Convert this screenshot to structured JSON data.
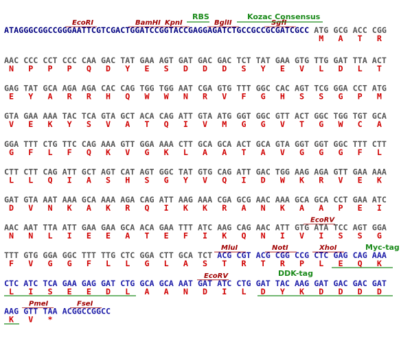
{
  "header": {
    "tags": [
      "RBS",
      "Kozac Consensus"
    ],
    "enzymes": [
      "EcoRI",
      "BamHI",
      "KpnI",
      "BglII",
      "SgfI"
    ],
    "leader": "ATAGGGCGGCCGGGAATTCGTCGACTGGATCCGGTACCGAGGAGATCTGCCGCCGCGATCGCC",
    "codons": [
      "ATG",
      "GCG",
      "ACC",
      "CGG"
    ],
    "amino_acids": [
      "M",
      "A",
      "T",
      "R"
    ]
  },
  "rows": [
    {
      "codons": [
        "AAC",
        "CCC",
        "CCT",
        "CCC",
        "CAA",
        "GAC",
        "TAT",
        "GAA",
        "AGT",
        "GAT",
        "GAC",
        "GAC",
        "TCT",
        "TAT",
        "GAA",
        "GTG",
        "TTG",
        "GAT",
        "TTA",
        "ACT"
      ],
      "amino_acids": [
        "N",
        "P",
        "P",
        "P",
        "Q",
        "D",
        "Y",
        "E",
        "S",
        "D",
        "D",
        "D",
        "S",
        "Y",
        "E",
        "V",
        "L",
        "D",
        "L",
        "T"
      ]
    },
    {
      "codons": [
        "GAG",
        "TAT",
        "GCA",
        "AGA",
        "AGA",
        "CAC",
        "CAG",
        "TGG",
        "TGG",
        "AAT",
        "CGA",
        "GTG",
        "TTT",
        "GGC",
        "CAC",
        "AGT",
        "TCG",
        "GGA",
        "CCT",
        "ATG"
      ],
      "amino_acids": [
        "E",
        "Y",
        "A",
        "R",
        "R",
        "H",
        "Q",
        "W",
        "W",
        "N",
        "R",
        "V",
        "F",
        "G",
        "H",
        "S",
        "S",
        "G",
        "P",
        "M"
      ]
    },
    {
      "codons": [
        "GTA",
        "GAA",
        "AAA",
        "TAC",
        "TCA",
        "GTA",
        "GCT",
        "ACA",
        "CAG",
        "ATT",
        "GTA",
        "ATG",
        "GGT",
        "GGC",
        "GTT",
        "ACT",
        "GGC",
        "TGG",
        "TGT",
        "GCA"
      ],
      "amino_acids": [
        "V",
        "E",
        "K",
        "Y",
        "S",
        "V",
        "A",
        "T",
        "Q",
        "I",
        "V",
        "M",
        "G",
        "G",
        "V",
        "T",
        "G",
        "W",
        "C",
        "A"
      ]
    },
    {
      "codons": [
        "GGA",
        "TTT",
        "CTG",
        "TTC",
        "CAG",
        "AAA",
        "GTT",
        "GGA",
        "AAA",
        "CTT",
        "GCA",
        "GCA",
        "ACT",
        "GCA",
        "GTA",
        "GGT",
        "GGT",
        "GGC",
        "TTT",
        "CTT"
      ],
      "amino_acids": [
        "G",
        "F",
        "L",
        "F",
        "Q",
        "K",
        "V",
        "G",
        "K",
        "L",
        "A",
        "A",
        "T",
        "A",
        "V",
        "G",
        "G",
        "G",
        "F",
        "L"
      ]
    },
    {
      "codons": [
        "CTT",
        "CTT",
        "CAG",
        "ATT",
        "GCT",
        "AGT",
        "CAT",
        "AGT",
        "GGC",
        "TAT",
        "GTG",
        "CAG",
        "ATT",
        "GAC",
        "TGG",
        "AAG",
        "AGA",
        "GTT",
        "GAA",
        "AAA"
      ],
      "amino_acids": [
        "L",
        "L",
        "Q",
        "I",
        "A",
        "S",
        "H",
        "S",
        "G",
        "Y",
        "V",
        "Q",
        "I",
        "D",
        "W",
        "K",
        "R",
        "V",
        "E",
        "K"
      ]
    },
    {
      "codons": [
        "GAT",
        "GTA",
        "AAT",
        "AAA",
        "GCA",
        "AAA",
        "AGA",
        "CAG",
        "ATT",
        "AAG",
        "AAA",
        "CGA",
        "GCG",
        "AAC",
        "AAA",
        "GCA",
        "GCA",
        "CCT",
        "GAA",
        "ATC"
      ],
      "amino_acids": [
        "D",
        "V",
        "N",
        "K",
        "A",
        "K",
        "R",
        "Q",
        "I",
        "K",
        "K",
        "R",
        "A",
        "N",
        "K",
        "A",
        "A",
        "P",
        "E",
        "I"
      ]
    },
    {
      "enzymes": [
        "EcoRV"
      ],
      "codons": [
        "AAC",
        "AAT",
        "TTA",
        "ATT",
        "GAA",
        "GAA",
        "GCA",
        "ACA",
        "GAA",
        "TTT",
        "ATC",
        "AAG",
        "CAG",
        "AAC",
        "ATT",
        "GTG",
        "ATA",
        "TCC",
        "AGT",
        "GGA"
      ],
      "amino_acids": [
        "N",
        "N",
        "L",
        "I",
        "E",
        "E",
        "A",
        "T",
        "E",
        "F",
        "I",
        "K",
        "Q",
        "N",
        "I",
        "V",
        "I",
        "S",
        "S",
        "G"
      ]
    },
    {
      "enzymes": [
        "MluI",
        "NotI",
        "XhoI"
      ],
      "tags": [
        "Myc-tag"
      ],
      "codons": [
        "TTT",
        "GTG",
        "GGA",
        "GGC",
        "TTT",
        "TTG",
        "CTC",
        "GGA",
        "CTT",
        "GCA",
        "TCT",
        "ACG",
        "CGT",
        "ACG",
        "CGG",
        "CCG",
        "CTC",
        "GAG",
        "CAG",
        "AAA"
      ],
      "amino_acids": [
        "F",
        "V",
        "G",
        "G",
        "F",
        "L",
        "L",
        "G",
        "L",
        "A",
        "S",
        "T",
        "R",
        "T",
        "R",
        "P",
        "L",
        "E",
        "Q",
        "K"
      ]
    },
    {
      "enzymes": [
        "EcoRV"
      ],
      "tags": [
        "DDK-tag"
      ],
      "codons": [
        "CTC",
        "ATC",
        "TCA",
        "GAA",
        "GAG",
        "GAT",
        "CTG",
        "GCA",
        "GCA",
        "AAT",
        "GAT",
        "ATC",
        "CTG",
        "GAT",
        "TAC",
        "AAG",
        "GAT",
        "GAC",
        "GAC",
        "GAT"
      ],
      "amino_acids": [
        "L",
        "I",
        "S",
        "E",
        "E",
        "D",
        "L",
        "A",
        "A",
        "N",
        "D",
        "I",
        "L",
        "D",
        "Y",
        "K",
        "D",
        "D",
        "D",
        "D"
      ]
    },
    {
      "enzymes": [
        "PmeI",
        "FseI"
      ],
      "codons": [
        "AAG",
        "GTT",
        "TAA"
      ],
      "tail": "ACGGCCGGCC",
      "amino_acids": [
        "K",
        "V",
        "*"
      ]
    }
  ]
}
